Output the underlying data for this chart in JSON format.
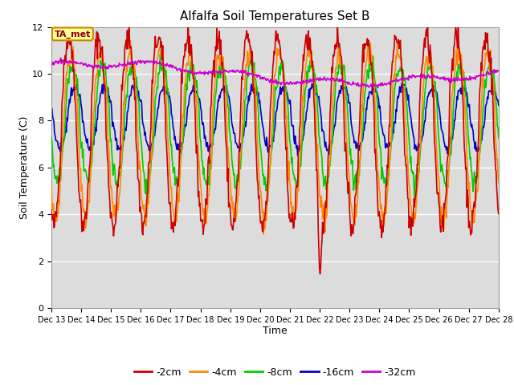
{
  "title": "Alfalfa Soil Temperatures Set B",
  "xlabel": "Time",
  "ylabel": "Soil Temperature (C)",
  "ylim": [
    0,
    12
  ],
  "xlim": [
    13,
    28
  ],
  "xtick_labels": [
    "Dec 13",
    "Dec 14",
    "Dec 15",
    "Dec 16",
    "Dec 17",
    "Dec 18",
    "Dec 19",
    "Dec 20",
    "Dec 21",
    "Dec 22",
    "Dec 23",
    "Dec 24",
    "Dec 25",
    "Dec 26",
    "Dec 27",
    "Dec 28"
  ],
  "ytick_vals": [
    0,
    2,
    4,
    6,
    8,
    10,
    12
  ],
  "colors": {
    "-2cm": "#cc0000",
    "-4cm": "#ff8800",
    "-8cm": "#00cc00",
    "-16cm": "#0000cc",
    "-32cm": "#cc00cc"
  },
  "background_color": "#dcdcdc",
  "annotation_text": "TA_met",
  "annotation_bg": "#ffff99",
  "annotation_border": "#cc8800",
  "figsize": [
    6.4,
    4.8
  ],
  "dpi": 100
}
